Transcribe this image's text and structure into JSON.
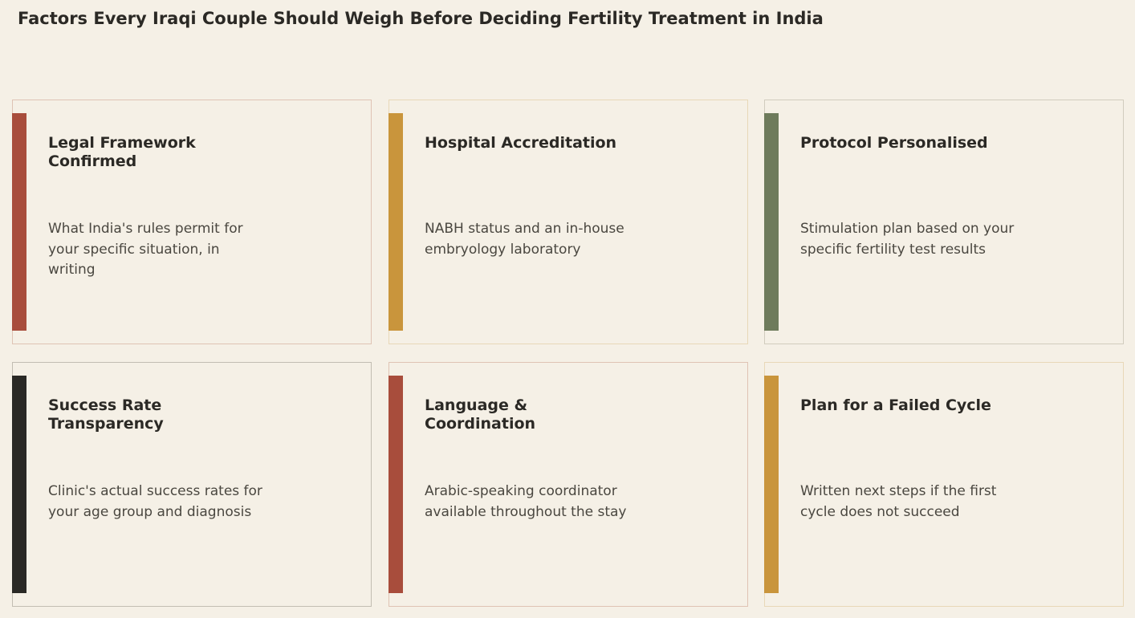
{
  "page_title": "Factors Every Iraqi Couple Should Weigh Before Deciding Fertility Treatment in India",
  "cards": [
    {
      "title": "Legal Framework Confirmed",
      "description": "What India's rules permit for your specific situation, in writing",
      "accent_color": "#a84d3c",
      "border_color": "#dfc3b4"
    },
    {
      "title": "Hospital Accreditation",
      "description": "NABH status and an in-house embryology laboratory",
      "accent_color": "#c9953c",
      "border_color": "#e8d8b8"
    },
    {
      "title": "Protocol Personalised",
      "description": "Stimulation plan based on your specific fertility test results",
      "accent_color": "#6e7b5c",
      "border_color": "#d1ccbe"
    },
    {
      "title": "Success Rate Transparency",
      "description": "Clinic's actual success rates for your age group and diagnosis",
      "accent_color": "#2a2925",
      "border_color": "#c2bdb2"
    },
    {
      "title": "Language & Coordination",
      "description": "Arabic-speaking coordinator available throughout the stay",
      "accent_color": "#a84d3c",
      "border_color": "#dfc3b4"
    },
    {
      "title": "Plan for a Failed Cycle",
      "description": "Written next steps if the first cycle does not succeed",
      "accent_color": "#c9953c",
      "border_color": "#e8d8b8"
    }
  ]
}
